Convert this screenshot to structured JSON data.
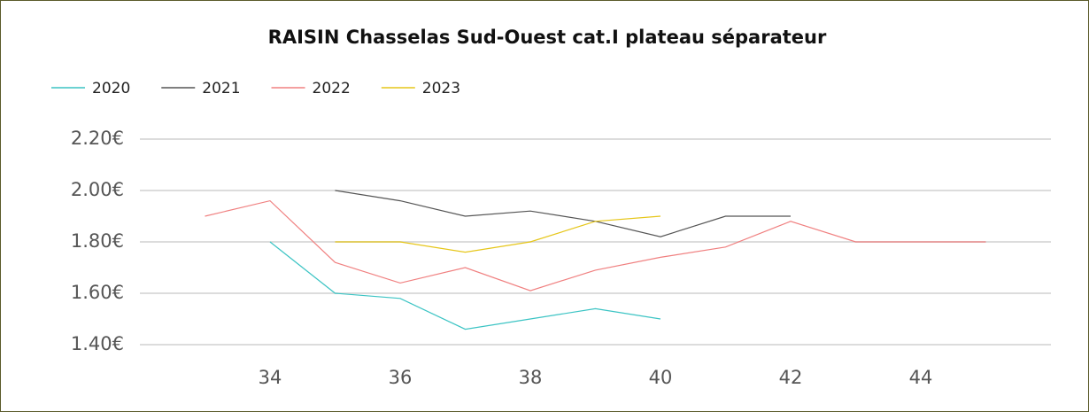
{
  "chart_data": {
    "type": "line",
    "title": "RAISIN Chasselas Sud-Ouest cat.I plateau séparateur",
    "x": [
      33,
      34,
      35,
      36,
      37,
      38,
      39,
      40,
      41,
      42,
      43,
      44,
      45
    ],
    "series": [
      {
        "name": "2020",
        "color": "#3cc4c4",
        "values": [
          null,
          1.8,
          1.6,
          1.58,
          1.46,
          1.5,
          1.54,
          1.5,
          null,
          null,
          null,
          null,
          null
        ]
      },
      {
        "name": "2021",
        "color": "#555555",
        "values": [
          null,
          null,
          2.0,
          1.96,
          1.9,
          1.92,
          1.88,
          1.82,
          1.9,
          1.9,
          null,
          null,
          null
        ]
      },
      {
        "name": "2022",
        "color": "#f08080",
        "values": [
          1.9,
          1.96,
          1.72,
          1.64,
          1.7,
          1.61,
          1.69,
          1.74,
          1.78,
          1.88,
          1.8,
          1.8,
          1.8
        ]
      },
      {
        "name": "2023",
        "color": "#e6c619",
        "values": [
          null,
          null,
          1.8,
          1.8,
          1.76,
          1.8,
          1.88,
          1.9,
          null,
          null,
          null,
          null,
          null
        ]
      }
    ],
    "xlim": [
      32,
      46
    ],
    "xticks": [
      34,
      36,
      38,
      40,
      42,
      44
    ],
    "ylim": [
      1.35,
      2.25
    ],
    "yticks": [
      {
        "value": 1.4,
        "label": "1.40€"
      },
      {
        "value": 1.6,
        "label": "1.60€"
      },
      {
        "value": 1.8,
        "label": "1.80€"
      },
      {
        "value": 2.0,
        "label": "2.00€"
      },
      {
        "value": 2.2,
        "label": "2.20€"
      }
    ],
    "grid": true,
    "legend": "top-left"
  }
}
